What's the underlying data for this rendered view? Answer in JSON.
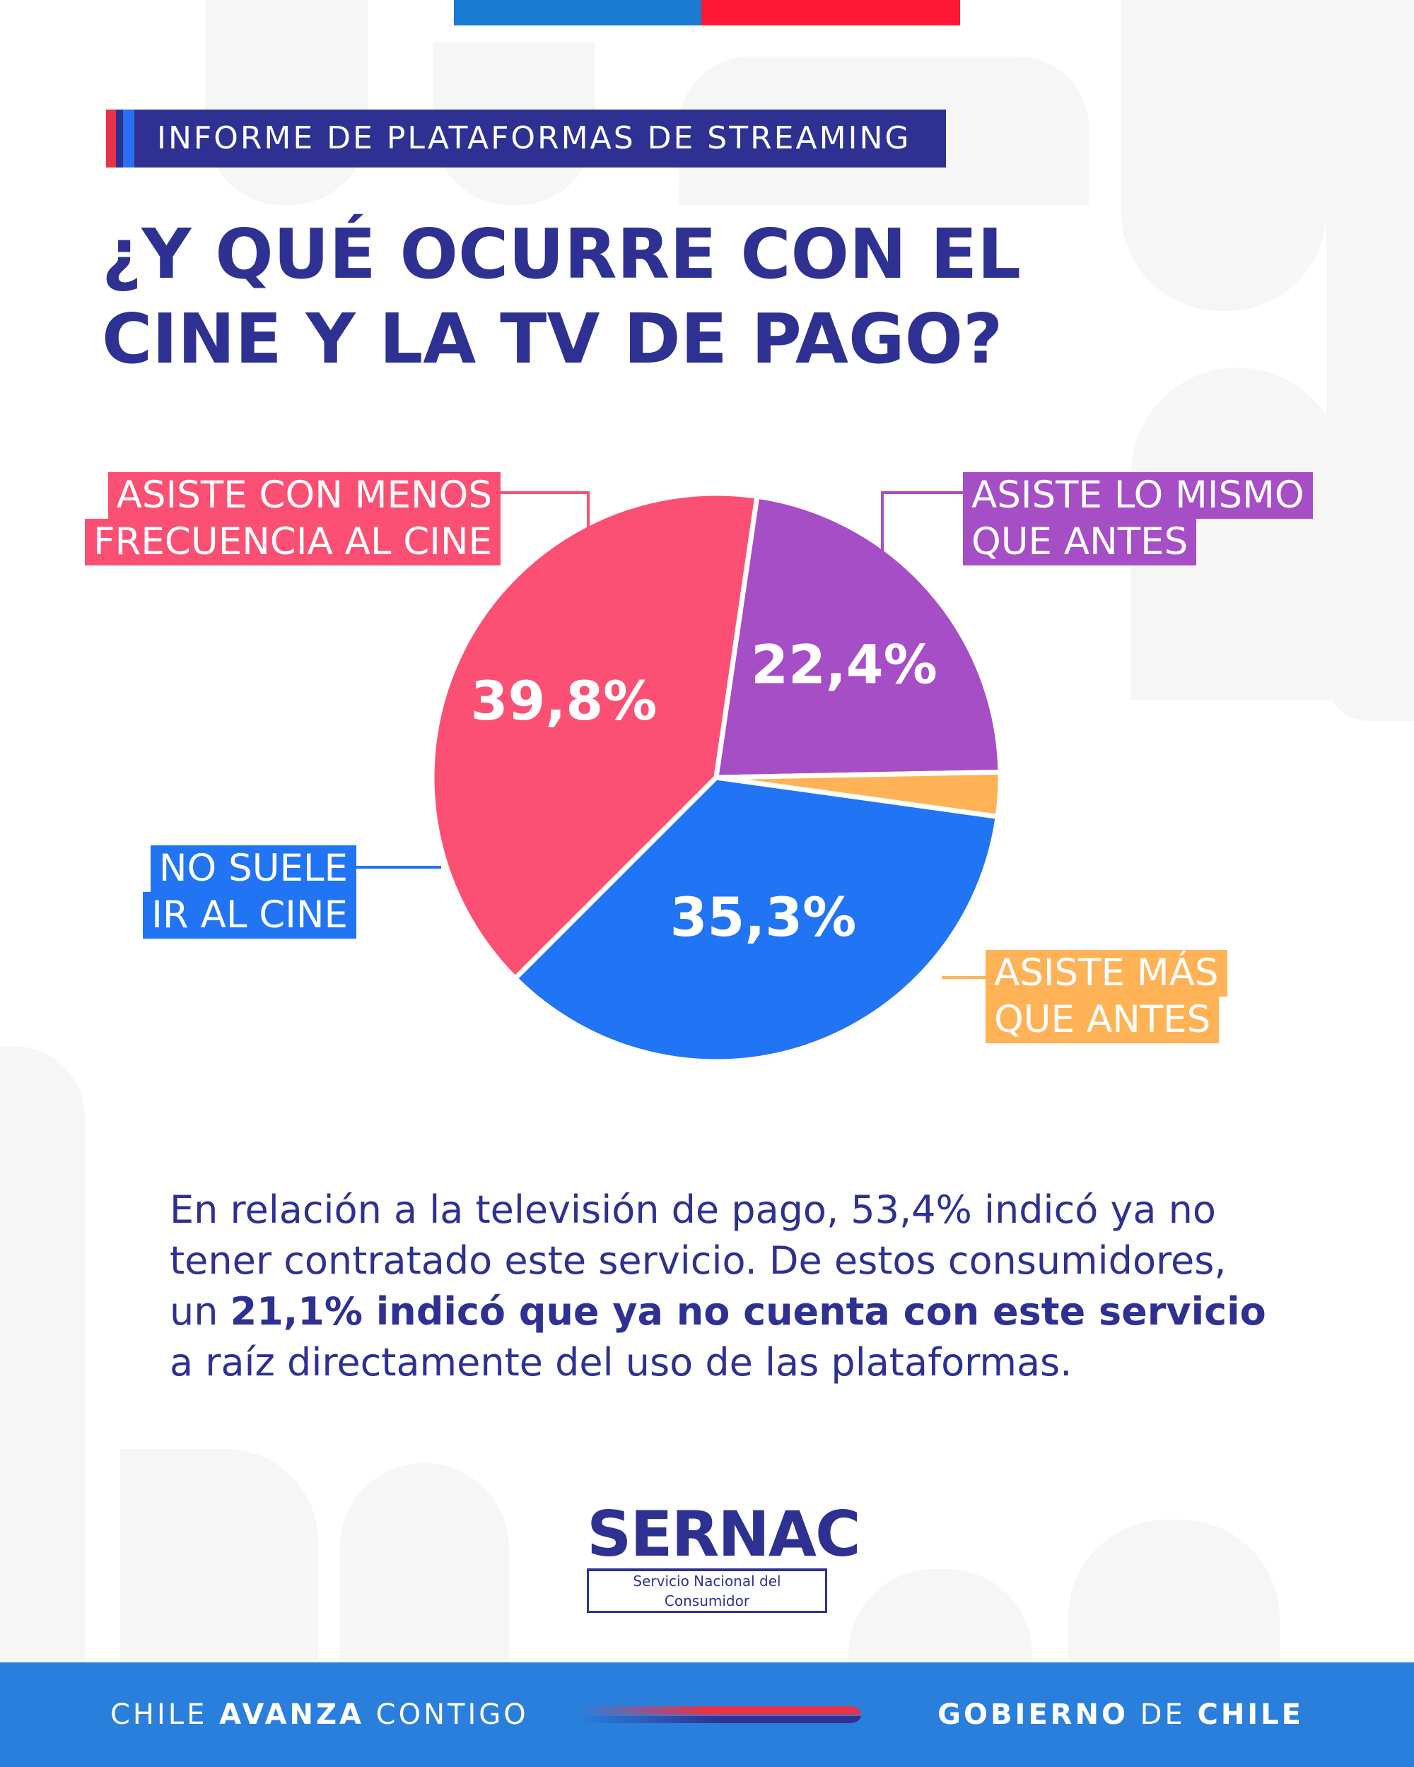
{
  "header": {
    "badge": "INFORME DE PLATAFORMAS DE STREAMING",
    "title_line1": "¿Y QUÉ OCURRE CON EL",
    "title_line2": "CINE Y LA TV DE PAGO?"
  },
  "colors": {
    "navy": "#2e3192",
    "flag_blue": "#1a7bd3",
    "flag_red": "#ff1733",
    "footer_blue": "#2a7fdd"
  },
  "chart_data": {
    "type": "pie",
    "title": "",
    "slices": [
      {
        "label_line1": "ASISTE CON MENOS",
        "label_line2": "FRECUENCIA AL CINE",
        "value": 39.8,
        "value_label": "39,8%",
        "color": "#fb5074"
      },
      {
        "label_line1": "ASISTE LO MISMO",
        "label_line2": "QUE ANTES",
        "value": 22.4,
        "value_label": "22,4%",
        "color": "#a64ec6"
      },
      {
        "label_line1": "ASISTE MÁS",
        "label_line2": "QUE ANTES",
        "value": 2.5,
        "value_label": "",
        "color": "#ffb256"
      },
      {
        "label_line1": "NO SUELE",
        "label_line2": "IR AL CINE",
        "value": 35.3,
        "value_label": "35,3%",
        "color": "#2174f3"
      }
    ]
  },
  "body": {
    "text_start": "En relación a la televisión de pago, 53,4% indicó ya no tener contratado este servicio. De estos consumidores, un ",
    "text_bold": "21,1% indicó que ya no cuenta con este servicio",
    "text_end": " a raíz directamente del uso de las plataformas."
  },
  "logo": {
    "name": "SERNAC",
    "subtitle": "Servicio Nacional del Consumidor"
  },
  "footer": {
    "left_a": "CHILE ",
    "left_b": "AVANZA",
    "left_c": " CONTIGO",
    "right_a": "GOBIERNO",
    "right_b": " DE ",
    "right_c": "CHILE"
  }
}
